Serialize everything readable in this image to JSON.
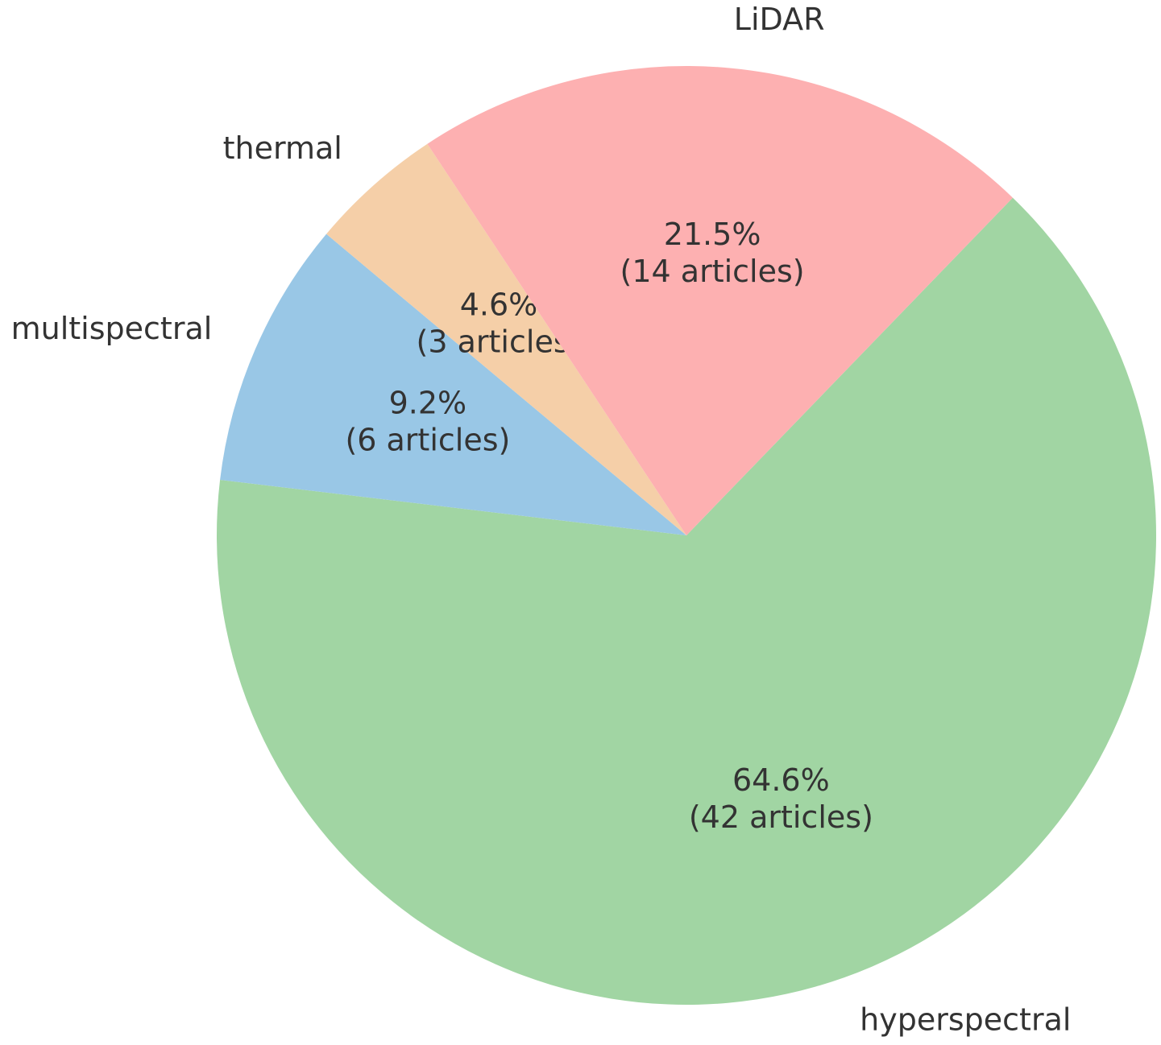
{
  "chart_data": {
    "type": "pie",
    "categories": [
      "hyperspectral",
      "multispectral",
      "thermal",
      "LiDAR"
    ],
    "values": [
      64.6,
      9.2,
      4.6,
      21.5
    ],
    "value_labels": [
      "64.6%",
      "9.2%",
      "4.6%",
      "21.5%"
    ],
    "counts": [
      42,
      6,
      3,
      14
    ],
    "count_labels": [
      "(42 articles)",
      "(6 articles)",
      "(3 articles)",
      "(14 articles)"
    ],
    "colors": [
      "#a1d5a3",
      "#99c7e6",
      "#f5cfa8",
      "#fdb0b1"
    ]
  }
}
